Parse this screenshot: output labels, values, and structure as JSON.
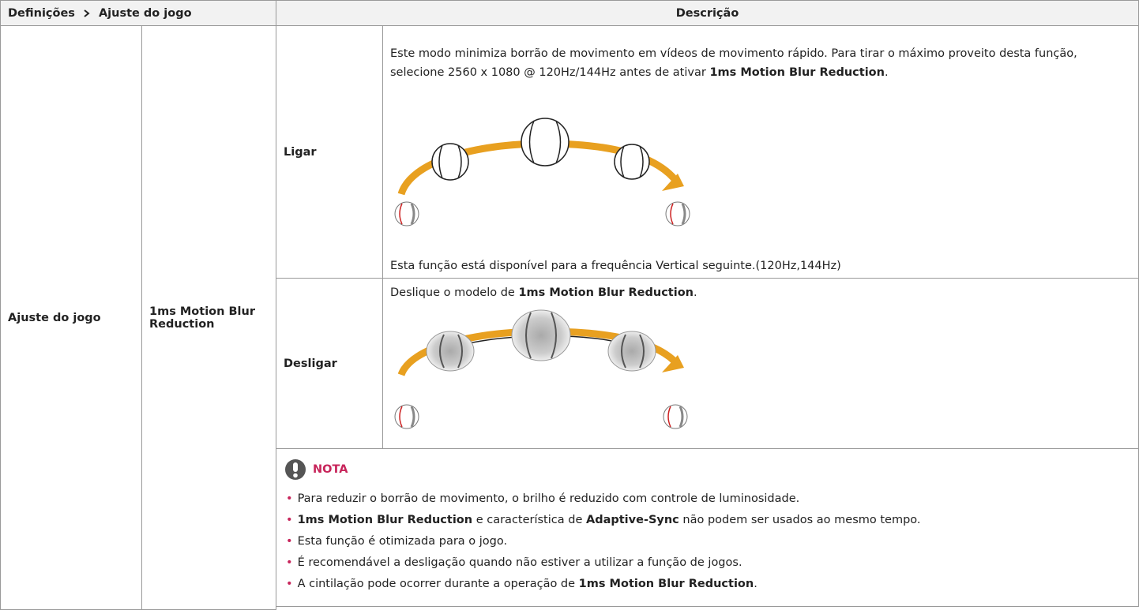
{
  "header": {
    "breadcrumb": [
      "Definições",
      "Ajuste do jogo"
    ],
    "description": "Descrição"
  },
  "table": {
    "setting": "Ajuste do jogo",
    "feature": "1ms Motion Blur Reduction",
    "rows": [
      {
        "label": "Ligar",
        "text": [
          "Este modo minimiza borrão de movimento em vídeos de movimento rápido. Para tirar o máximo proveito desta função, selecione 2560 x 1080 @ 120Hz/144Hz antes de ativar ",
          {
            "text": "1ms Motion Blur Reduction",
            "bold": true
          },
          "."
        ],
        "footnote": "Esta função está disponível para a frequência Vertical seguinte.(120Hz,144Hz)"
      },
      {
        "label": "Desligar",
        "text": [
          "Deslique o modelo de ",
          {
            "text": "1ms Motion Blur Reduction",
            "bold": true
          },
          "."
        ]
      }
    ]
  },
  "note": {
    "title": "NOTA",
    "items": [
      [
        "Para reduzir o borrão de movimento, o brilho é reduzido com controle de luminosidade."
      ],
      [
        {
          "text": "1ms Motion Blur Reduction",
          "bold": true
        },
        " e característica de ",
        {
          "text": "Adaptive-Sync",
          "bold": true
        },
        " não podem ser usados ao mesmo tempo."
      ],
      [
        "Esta função é otimizada para o jogo."
      ],
      [
        "É recomendável a desligação quando não estiver a utilizar a função de jogos."
      ],
      [
        "A cintilação pode ocorrer durante a operação de ",
        {
          "text": "1ms Motion Blur Reduction",
          "bold": true
        },
        "."
      ]
    ]
  }
}
